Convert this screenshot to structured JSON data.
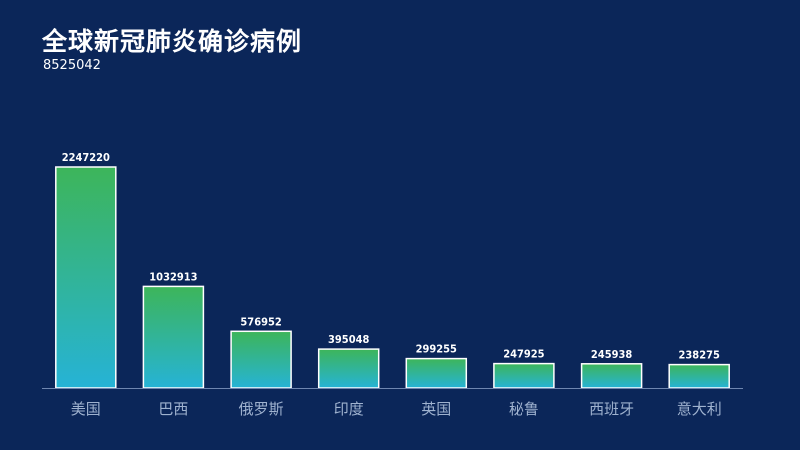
{
  "header": {
    "title": "全球新冠肺炎确诊病例",
    "subtitle": "8525042"
  },
  "colors": {
    "background": "#0b2659",
    "bar_top": "#3db55a",
    "bar_bottom": "#26b3d6",
    "bar_border": "#ffffff",
    "axis": "#6f86b0",
    "category_text": "#9fb2cf"
  },
  "chart_data": {
    "type": "bar",
    "title": "全球新冠肺炎确诊病例",
    "subtitle": "8525042",
    "categories": [
      "美国",
      "巴西",
      "俄罗斯",
      "印度",
      "英国",
      "秘鲁",
      "西班牙",
      "意大利"
    ],
    "values": [
      2247220,
      1032913,
      576952,
      395048,
      299255,
      247925,
      245938,
      238275
    ],
    "ylim": [
      0,
      2500000
    ],
    "grid": false,
    "legend": "none",
    "xlabel": "",
    "ylabel": ""
  }
}
